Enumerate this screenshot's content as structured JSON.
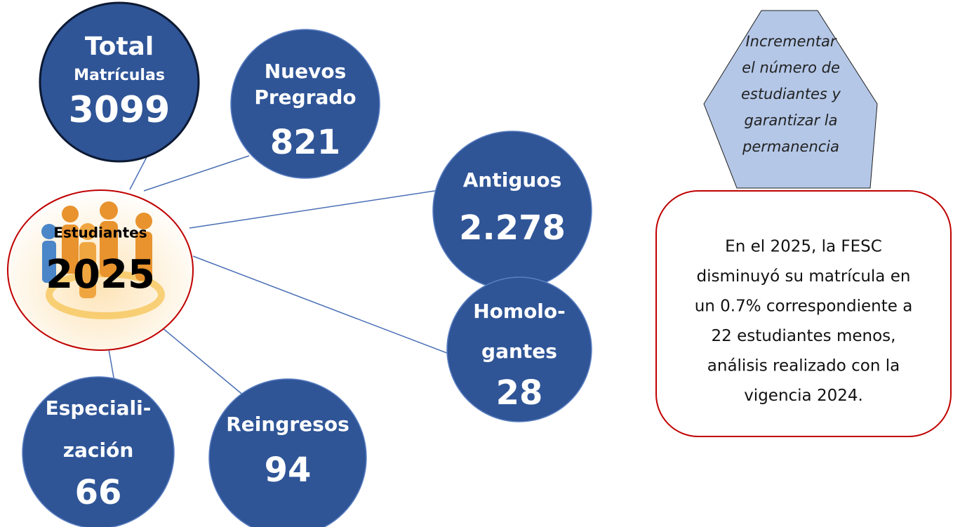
{
  "center": {
    "label": "Estudiantes",
    "year": "2025"
  },
  "nodes": [
    {
      "lines": [
        "Total",
        "Matrículas"
      ],
      "value": "3099"
    },
    {
      "lines": [
        "Nuevos",
        "Pregrado"
      ],
      "value": "821"
    },
    {
      "lines": [
        "Antiguos"
      ],
      "value": "2.278"
    },
    {
      "lines": [
        "Homolo-",
        "gantes"
      ],
      "value": "28"
    },
    {
      "lines": [
        "Especiali-",
        "zación"
      ],
      "value": "66"
    },
    {
      "lines": [
        "Reingresos"
      ],
      "value": "94"
    }
  ],
  "goal": {
    "lines": [
      "Incrementar",
      "el número de",
      "estudiantes y",
      "garantizar la",
      "permanencia"
    ]
  },
  "note": {
    "lines": [
      "En el 2025, la FESC",
      "disminuyó su matrícula en",
      "un 0.7% correspondiente a",
      "22 estudiantes menos,",
      "análisis realizado con la",
      "vigencia 2024."
    ]
  }
}
